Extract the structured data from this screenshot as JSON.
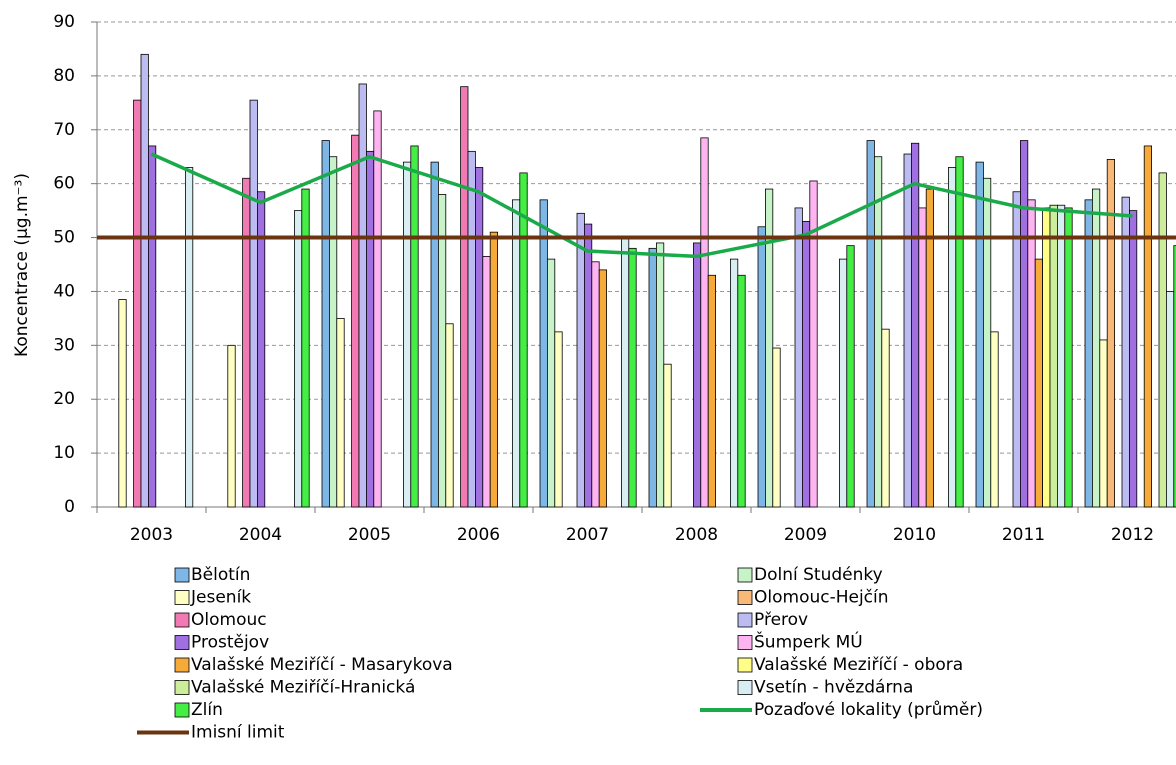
{
  "chart_data": {
    "type": "bar",
    "ylabel": "Koncentrace (µg.m⁻³)",
    "categories": [
      "2003",
      "2004",
      "2005",
      "2006",
      "2007",
      "2008",
      "2009",
      "2010",
      "2011",
      "2012"
    ],
    "ylim": [
      0,
      90
    ],
    "yticks": [
      0,
      10,
      20,
      30,
      40,
      50,
      60,
      70,
      80,
      90
    ],
    "grid": true,
    "series": [
      {
        "name": "Bělotín",
        "color": "#7eb6e6",
        "values": [
          null,
          null,
          68,
          64,
          57,
          48,
          52,
          68,
          64,
          57
        ]
      },
      {
        "name": "Dolní Studénky",
        "color": "#c8f2c8",
        "values": [
          null,
          null,
          65,
          58,
          46,
          49,
          59,
          65,
          61,
          59
        ]
      },
      {
        "name": "Jeseník",
        "color": "#ffffc4",
        "values": [
          38.5,
          30,
          35,
          34,
          32.5,
          26.5,
          29.5,
          33,
          32.5,
          31
        ]
      },
      {
        "name": "Olomouc-Hejčín",
        "color": "#f8b878",
        "values": [
          null,
          null,
          null,
          null,
          null,
          null,
          null,
          null,
          null,
          64.5
        ]
      },
      {
        "name": "Olomouc",
        "color": "#f27ab2",
        "values": [
          75.5,
          61,
          69,
          78,
          null,
          null,
          null,
          null,
          null,
          null
        ]
      },
      {
        "name": "Přerov",
        "color": "#bcbcf2",
        "values": [
          84,
          75.5,
          78.5,
          66,
          54.5,
          null,
          55.5,
          65.5,
          58.5,
          57.5
        ]
      },
      {
        "name": "Prostějov",
        "color": "#a070e0",
        "values": [
          67,
          58.5,
          66,
          63,
          52.5,
          49,
          53,
          67.5,
          68,
          55
        ]
      },
      {
        "name": "Šumperk MÚ",
        "color": "#ffb4f2",
        "values": [
          null,
          null,
          73.5,
          46.5,
          45.5,
          68.5,
          60.5,
          55.5,
          57,
          null
        ]
      },
      {
        "name": "Valašské Meziříčí - Masarykova",
        "color": "#f6aa3a",
        "values": [
          null,
          null,
          null,
          51,
          44,
          43,
          null,
          59,
          46,
          67
        ]
      },
      {
        "name": "Valašské Meziříčí - obora",
        "color": "#ffff88",
        "values": [
          null,
          null,
          null,
          null,
          null,
          null,
          null,
          null,
          55.5,
          null
        ]
      },
      {
        "name": "Valašské Meziříčí-Hranická",
        "color": "#ccee9a",
        "values": [
          null,
          null,
          null,
          null,
          null,
          null,
          null,
          null,
          56,
          62
        ]
      },
      {
        "name": "Vsetín - hvězdárna",
        "color": "#d8eef2",
        "values": [
          63,
          55,
          64,
          57,
          50,
          46,
          46,
          63,
          56,
          40
        ]
      },
      {
        "name": "Zlín",
        "color": "#44ee44",
        "values": [
          null,
          59,
          67,
          62,
          48,
          43,
          48.5,
          65,
          55.5,
          48.5
        ]
      },
      {
        "name": "Pozaďové lokality (průměr)",
        "color": "#1aaa4a",
        "type": "line",
        "values": [
          65.5,
          56.5,
          65,
          58.5,
          47.5,
          46.5,
          50.5,
          60,
          55.5,
          54
        ]
      },
      {
        "name": "Imisní limit",
        "color": "#6b3410",
        "type": "hline",
        "value": 50
      }
    ]
  }
}
